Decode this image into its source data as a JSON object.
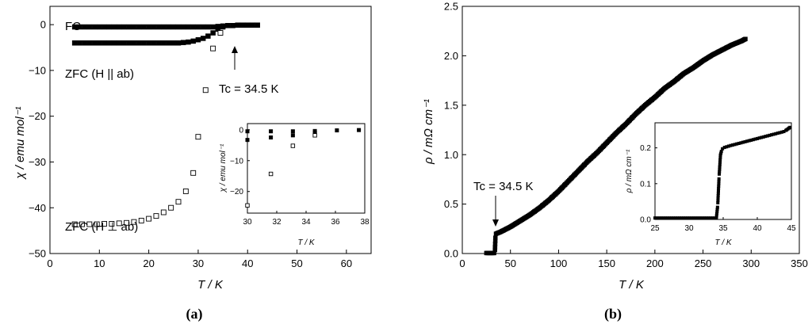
{
  "chart_data": [
    {
      "id": "a",
      "type": "scatter",
      "panel_label": "(a)",
      "xlabel": "T / K",
      "ylabel": "χ / emu mol⁻¹",
      "xlim": [
        0,
        65
      ],
      "ylim": [
        -50,
        4
      ],
      "xticks": [
        0,
        10,
        20,
        30,
        40,
        50,
        60
      ],
      "yticks": [
        0,
        -10,
        -20,
        -30,
        -40,
        -50
      ],
      "grid": false,
      "annotations": {
        "fc": "FC",
        "zfc_par": "ZFC (H || ab)",
        "zfc_perp": "ZFC (H ⊥ ab)",
        "tc": "Tc = 34.5 K"
      },
      "series": [
        {
          "name": "FC",
          "marker": "filled-square",
          "x": [
            5,
            6,
            7,
            8,
            9,
            10,
            11,
            12,
            13,
            14,
            15,
            16,
            17,
            18,
            19,
            20,
            21,
            22,
            23,
            24,
            25,
            26,
            27,
            28,
            29,
            30,
            31,
            32,
            33,
            34,
            35,
            36,
            37,
            38,
            39,
            40,
            41,
            42
          ],
          "y": [
            -0.5,
            -0.5,
            -0.5,
            -0.5,
            -0.5,
            -0.5,
            -0.5,
            -0.5,
            -0.5,
            -0.5,
            -0.5,
            -0.5,
            -0.5,
            -0.5,
            -0.5,
            -0.5,
            -0.5,
            -0.5,
            -0.5,
            -0.5,
            -0.5,
            -0.5,
            -0.5,
            -0.5,
            -0.5,
            -0.5,
            -0.5,
            -0.5,
            -0.5,
            -0.4,
            -0.3,
            -0.2,
            -0.2,
            -0.1,
            -0.1,
            -0.1,
            -0.1,
            -0.1
          ]
        },
        {
          "name": "ZFC (H || ab)",
          "marker": "filled-square",
          "x": [
            5,
            6,
            7,
            8,
            9,
            10,
            11,
            12,
            13,
            14,
            15,
            16,
            17,
            18,
            19,
            20,
            21,
            22,
            23,
            24,
            25,
            26,
            27,
            28,
            29,
            30,
            31,
            32,
            33,
            34,
            35
          ],
          "y": [
            -4.0,
            -4.0,
            -4.0,
            -4.0,
            -4.0,
            -4.0,
            -4.0,
            -4.0,
            -4.0,
            -4.0,
            -4.0,
            -4.0,
            -4.0,
            -4.0,
            -4.0,
            -4.0,
            -4.0,
            -4.0,
            -4.0,
            -4.0,
            -4.0,
            -4.0,
            -3.9,
            -3.8,
            -3.6,
            -3.3,
            -3.0,
            -2.5,
            -1.8,
            -1.0,
            -0.5
          ]
        },
        {
          "name": "ZFC (H ⊥ ab)",
          "marker": "open-square",
          "x": [
            5,
            6.5,
            8,
            9.5,
            11,
            12.5,
            14,
            15.5,
            17,
            18.5,
            20,
            21.5,
            23,
            24.5,
            26,
            27.5,
            29,
            30,
            31.5,
            33,
            34.5
          ],
          "y": [
            -43.6,
            -43.6,
            -43.6,
            -43.6,
            -43.5,
            -43.5,
            -43.4,
            -43.3,
            -43.1,
            -42.8,
            -42.4,
            -41.8,
            -41.0,
            -40.0,
            -38.7,
            -36.4,
            -32.4,
            -24.5,
            -14.3,
            -5.2,
            -1.8
          ]
        }
      ],
      "inset": {
        "xlabel": "T / K",
        "ylabel": "χ / emu mol⁻¹",
        "xlim": [
          30,
          38
        ],
        "ylim": [
          -27,
          2
        ],
        "xticks": [
          30,
          32,
          34,
          36,
          38
        ],
        "yticks": [
          0,
          -10,
          -20
        ],
        "series": [
          {
            "name": "FC",
            "marker": "filled-square",
            "x": [
              30,
              31.6,
              33.1,
              34.6,
              36.1,
              37.6
            ],
            "y": [
              -0.5,
              -0.5,
              -0.5,
              -0.4,
              -0.2,
              -0.1
            ]
          },
          {
            "name": "ZFC (H || ab)",
            "marker": "filled-square",
            "x": [
              30,
              31.6,
              33.1,
              34.6
            ],
            "y": [
              -3.3,
              -2.5,
              -1.8,
              -1.0
            ]
          },
          {
            "name": "ZFC (H ⊥ ab)",
            "marker": "open-square",
            "x": [
              30,
              31.6,
              33.1,
              34.6
            ],
            "y": [
              -24.5,
              -14.3,
              -5.2,
              -1.8
            ]
          }
        ]
      }
    },
    {
      "id": "b",
      "type": "scatter",
      "panel_label": "(b)",
      "xlabel": "T / K",
      "ylabel": "ρ / mΩ cm⁻¹",
      "xlim": [
        0,
        350
      ],
      "ylim": [
        0,
        2.5
      ],
      "xticks": [
        0,
        50,
        100,
        150,
        200,
        250,
        300,
        350
      ],
      "yticks": [
        0.0,
        0.5,
        1.0,
        1.5,
        2.0,
        2.5
      ],
      "grid": false,
      "annotations": {
        "tc": "Tc = 34.5 K"
      },
      "series": [
        {
          "name": "resistivity",
          "marker": "filled-square",
          "curve": {
            "x": [
              25,
              33.8,
              34.5,
              35,
              40,
              50,
              60,
              70,
              80,
              90,
              100,
              110,
              120,
              130,
              140,
              150,
              160,
              170,
              180,
              190,
              200,
              210,
              220,
              230,
              240,
              250,
              260,
              270,
              280,
              290,
              294
            ],
            "y": [
              0.005,
              0.005,
              0.19,
              0.2,
              0.22,
              0.27,
              0.33,
              0.39,
              0.46,
              0.54,
              0.63,
              0.73,
              0.83,
              0.93,
              1.02,
              1.12,
              1.22,
              1.31,
              1.41,
              1.5,
              1.58,
              1.67,
              1.74,
              1.82,
              1.88,
              1.95,
              2.01,
              2.06,
              2.11,
              2.15,
              2.17
            ]
          }
        }
      ],
      "inset": {
        "xlabel": "T / K",
        "ylabel": "ρ / mΩ cm⁻¹",
        "xlim": [
          25,
          45
        ],
        "ylim": [
          0,
          0.27
        ],
        "xticks": [
          25,
          30,
          35,
          40,
          45
        ],
        "yticks": [
          0.0,
          0.1,
          0.2
        ],
        "curve": {
          "x": [
            25,
            34.0,
            34.2,
            34.4,
            34.6,
            34.8,
            35,
            36,
            37,
            38,
            39,
            40,
            41,
            42,
            43,
            44,
            45
          ],
          "y": [
            0.004,
            0.004,
            0.04,
            0.12,
            0.18,
            0.195,
            0.2,
            0.206,
            0.211,
            0.216,
            0.221,
            0.226,
            0.231,
            0.236,
            0.241,
            0.246,
            0.26
          ]
        }
      }
    }
  ]
}
